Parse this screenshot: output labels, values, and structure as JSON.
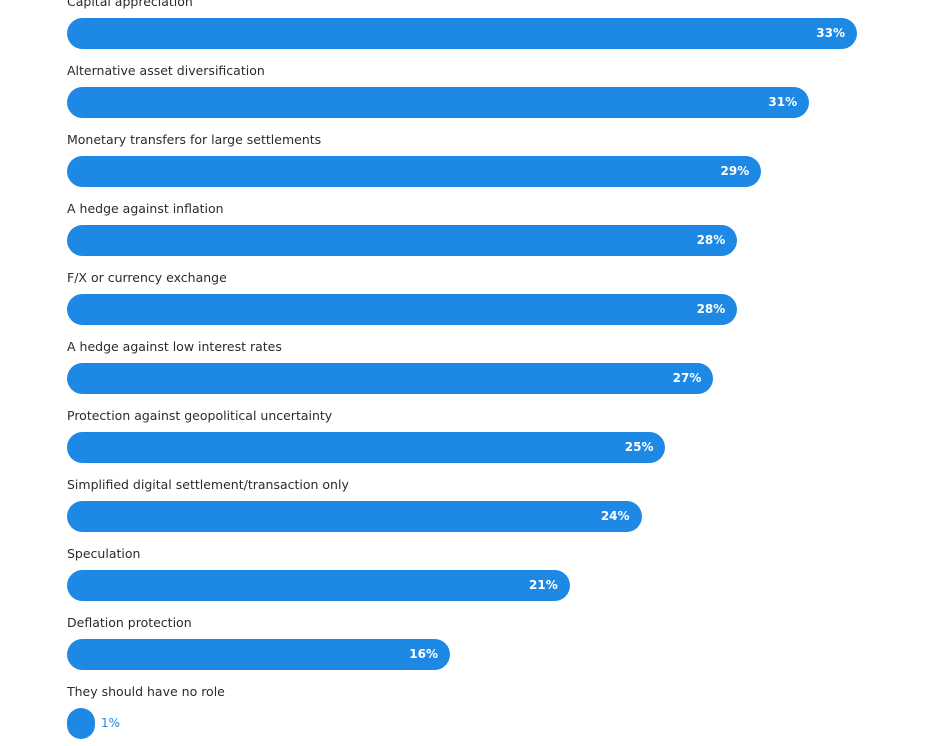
{
  "chart_data": {
    "type": "bar",
    "orientation": "horizontal",
    "categories": [
      "Capital appreciation",
      "Alternative asset diversification",
      "Monetary transfers for large settlements",
      "A hedge against inflation",
      "F/X or currency exchange",
      "A hedge against low interest rates",
      "Protection against geopolitical uncertainty",
      "Simplified digital settlement/transaction only",
      "Speculation",
      "Deflation protection",
      "They should have no role"
    ],
    "values": [
      33,
      31,
      29,
      28,
      28,
      27,
      25,
      24,
      21,
      16,
      1
    ],
    "value_labels": [
      "33%",
      "31%",
      "29%",
      "28%",
      "28%",
      "27%",
      "25%",
      "24%",
      "21%",
      "16%",
      "1%"
    ],
    "unit": "%",
    "bar_color": "#1e88e5",
    "grid": false,
    "legend": "none"
  }
}
